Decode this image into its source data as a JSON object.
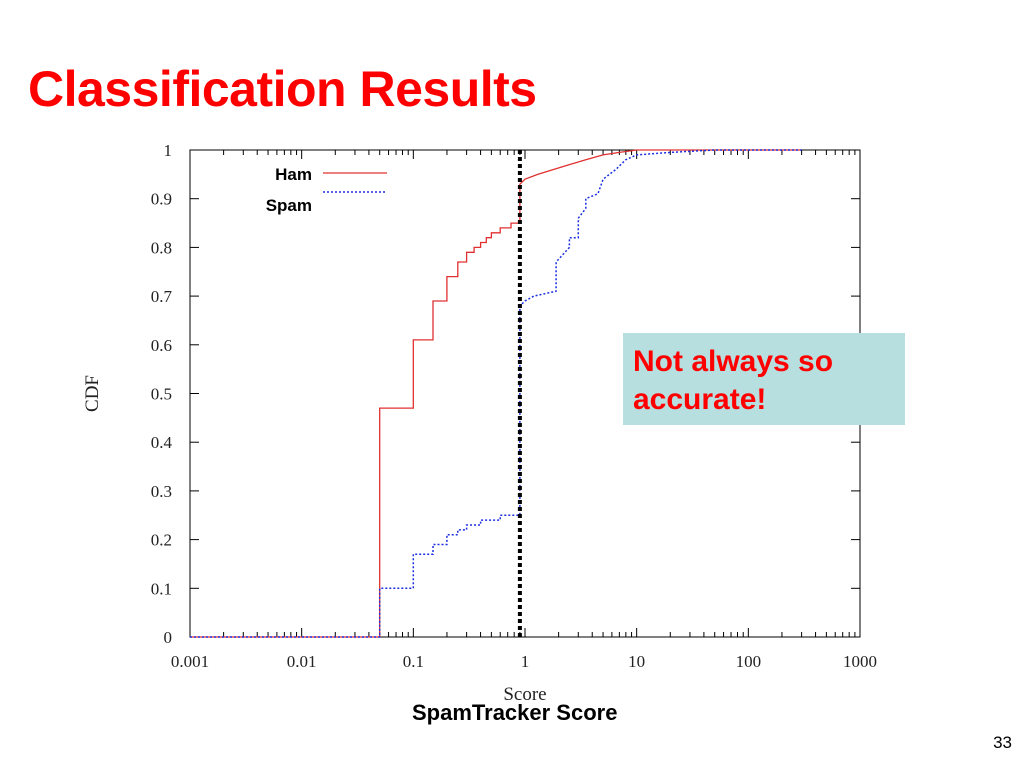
{
  "slide": {
    "title": "Classification Results",
    "callout_lines": [
      "Not always so",
      "accurate!"
    ],
    "x_caption": "SpamTracker Score",
    "page_number": "33"
  },
  "colors": {
    "title": "#ff0000",
    "callout_bg": "#b7dfe0",
    "callout_text": "#ff0000",
    "ham": "#e03030",
    "spam": "#1a2fe0",
    "threshold": "#000000"
  },
  "chart_data": {
    "type": "line",
    "xlabel": "Score",
    "ylabel": "CDF",
    "x_scale": "log",
    "xlim": [
      0.001,
      1000
    ],
    "ylim": [
      0,
      1
    ],
    "x_ticks": [
      "0.001",
      "0.01",
      "0.1",
      "1",
      "10",
      "100",
      "1000"
    ],
    "x_tick_values": [
      0.001,
      0.01,
      0.1,
      1,
      10,
      100,
      1000
    ],
    "y_ticks": [
      "0",
      "0.1",
      "0.2",
      "0.3",
      "0.4",
      "0.5",
      "0.6",
      "0.7",
      "0.8",
      "0.9",
      "1"
    ],
    "y_tick_values": [
      0,
      0.1,
      0.2,
      0.3,
      0.4,
      0.5,
      0.6,
      0.7,
      0.8,
      0.9,
      1
    ],
    "grid": false,
    "legend_position": "top-left",
    "threshold_x": 0.9,
    "series": [
      {
        "name": "Ham",
        "style": "solid",
        "points": [
          [
            0.001,
            0
          ],
          [
            0.05,
            0
          ],
          [
            0.05,
            0.47
          ],
          [
            0.1,
            0.47
          ],
          [
            0.1,
            0.61
          ],
          [
            0.15,
            0.61
          ],
          [
            0.15,
            0.69
          ],
          [
            0.2,
            0.69
          ],
          [
            0.2,
            0.74
          ],
          [
            0.25,
            0.74
          ],
          [
            0.25,
            0.77
          ],
          [
            0.3,
            0.77
          ],
          [
            0.3,
            0.79
          ],
          [
            0.35,
            0.79
          ],
          [
            0.35,
            0.8
          ],
          [
            0.4,
            0.8
          ],
          [
            0.4,
            0.81
          ],
          [
            0.45,
            0.81
          ],
          [
            0.45,
            0.82
          ],
          [
            0.5,
            0.82
          ],
          [
            0.5,
            0.83
          ],
          [
            0.6,
            0.83
          ],
          [
            0.6,
            0.84
          ],
          [
            0.75,
            0.84
          ],
          [
            0.75,
            0.85
          ],
          [
            0.9,
            0.85
          ],
          [
            0.9,
            0.93
          ],
          [
            1.0,
            0.94
          ],
          [
            1.3,
            0.95
          ],
          [
            1.8,
            0.96
          ],
          [
            2.5,
            0.97
          ],
          [
            3.5,
            0.98
          ],
          [
            5,
            0.99
          ],
          [
            7,
            0.995
          ],
          [
            10,
            1.0
          ],
          [
            300,
            1.0
          ]
        ]
      },
      {
        "name": "Spam",
        "style": "dotted",
        "points": [
          [
            0.001,
            0
          ],
          [
            0.05,
            0
          ],
          [
            0.05,
            0.1
          ],
          [
            0.1,
            0.1
          ],
          [
            0.1,
            0.17
          ],
          [
            0.15,
            0.17
          ],
          [
            0.15,
            0.19
          ],
          [
            0.2,
            0.19
          ],
          [
            0.2,
            0.21
          ],
          [
            0.25,
            0.21
          ],
          [
            0.25,
            0.22
          ],
          [
            0.3,
            0.22
          ],
          [
            0.3,
            0.23
          ],
          [
            0.4,
            0.23
          ],
          [
            0.4,
            0.24
          ],
          [
            0.6,
            0.24
          ],
          [
            0.6,
            0.25
          ],
          [
            0.9,
            0.25
          ],
          [
            0.9,
            0.68
          ],
          [
            1.0,
            0.69
          ],
          [
            1.2,
            0.7
          ],
          [
            1.9,
            0.71
          ],
          [
            1.9,
            0.77
          ],
          [
            2.5,
            0.8
          ],
          [
            2.5,
            0.82
          ],
          [
            3,
            0.82
          ],
          [
            3,
            0.86
          ],
          [
            3.5,
            0.88
          ],
          [
            3.5,
            0.9
          ],
          [
            4.5,
            0.91
          ],
          [
            5,
            0.94
          ],
          [
            6.5,
            0.96
          ],
          [
            8,
            0.98
          ],
          [
            10,
            0.99
          ],
          [
            20,
            0.995
          ],
          [
            50,
            1.0
          ],
          [
            300,
            1.0
          ]
        ]
      }
    ]
  }
}
